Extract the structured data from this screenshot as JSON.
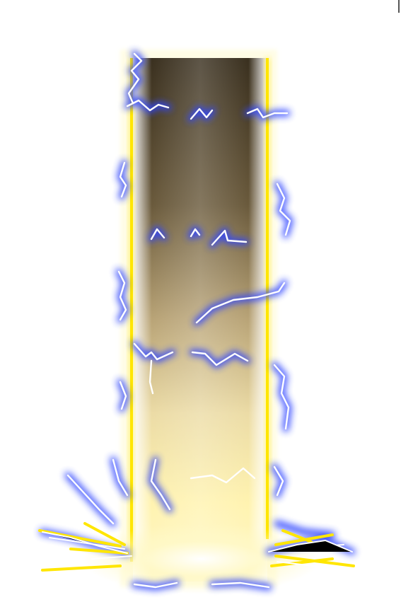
{
  "scene": {
    "subject": "energy-pillar",
    "colors": {
      "background": "#ffffff",
      "beam_border": "#ffe600",
      "beam_glow": "#fff7a8",
      "beam_dark": "#3d3323",
      "beam_mid": "#a08a5c",
      "beam_light": "#fff6b8",
      "lightning_glow": "#3a4dff",
      "lightning_core": "#ffffff"
    }
  }
}
